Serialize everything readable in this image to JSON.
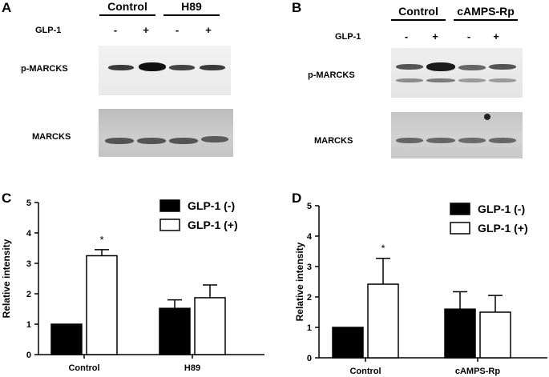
{
  "panel_a": {
    "letter": "A",
    "groups": [
      "Control",
      "H89"
    ],
    "treatment_label": "GLP-1",
    "signs": [
      "-",
      "+",
      "-",
      "+"
    ],
    "blots": [
      "p-MARCKS",
      "MARCKS"
    ]
  },
  "panel_b": {
    "letter": "B",
    "groups": [
      "Control",
      "cAMPS-Rp"
    ],
    "treatment_label": "GLP-1",
    "signs": [
      "-",
      "+",
      "-",
      "+"
    ],
    "blots": [
      "p-MARCKS",
      "MARCKS"
    ]
  },
  "chart_data": [
    {
      "panel": "C",
      "type": "bar",
      "categories": [
        "Control",
        "H89"
      ],
      "series": [
        {
          "name": "GLP-1 (-)",
          "values": [
            1.0,
            1.52
          ],
          "errors": [
            0,
            0.28
          ],
          "color": "#000000"
        },
        {
          "name": "GLP-1 (+)",
          "values": [
            3.25,
            1.87
          ],
          "errors": [
            0.2,
            0.42
          ],
          "color": "#ffffff"
        }
      ],
      "ylabel": "Relative intensity",
      "ylim": [
        0,
        5
      ],
      "yticks": [
        0,
        1,
        2,
        3,
        4,
        5
      ],
      "annotations": [
        {
          "text": "*",
          "category": "Control",
          "series": "GLP-1 (+)"
        }
      ],
      "legend": "top-right",
      "grid": false
    },
    {
      "panel": "D",
      "type": "bar",
      "categories": [
        "Control",
        "cAMPS-Rp"
      ],
      "series": [
        {
          "name": "GLP-1 (-)",
          "values": [
            1.0,
            1.6
          ],
          "errors": [
            0,
            0.57
          ],
          "color": "#000000"
        },
        {
          "name": "GLP-1 (+)",
          "values": [
            2.42,
            1.5
          ],
          "errors": [
            0.85,
            0.55
          ],
          "color": "#ffffff"
        }
      ],
      "ylabel": "Relative intensity",
      "ylim": [
        0,
        5
      ],
      "yticks": [
        0,
        1,
        2,
        3,
        4,
        5
      ],
      "annotations": [
        {
          "text": "*",
          "category": "Control",
          "series": "GLP-1 (+)"
        }
      ],
      "legend": "top-right",
      "grid": false
    }
  ]
}
